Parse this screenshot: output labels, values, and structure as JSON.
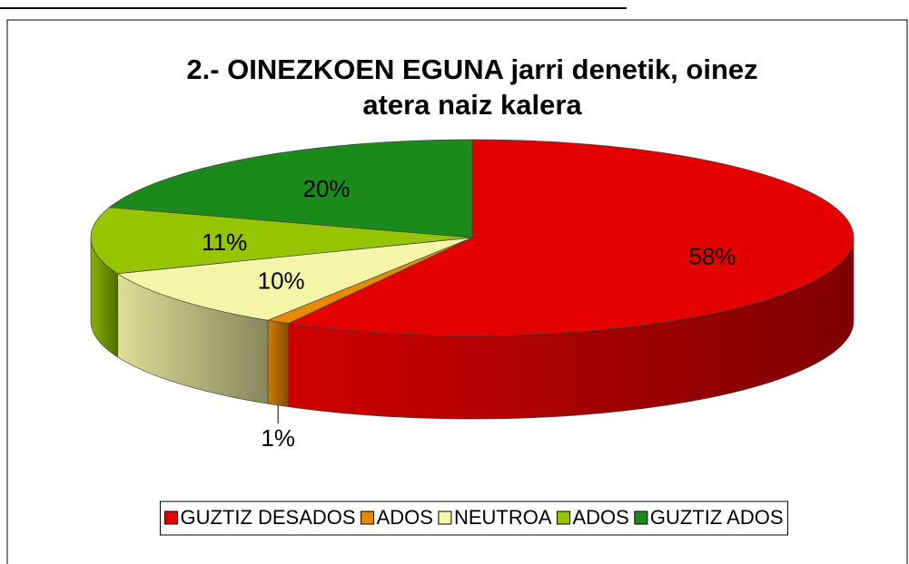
{
  "chart_data": {
    "type": "pie3d",
    "title": [
      "2.- OINEZKOEN EGUNA jarri denetik, oinez",
      "atera naiz kalera"
    ],
    "categories": [
      "GUZTIZ DESADOS",
      "ADOS",
      "NEUTROA",
      "ADOS",
      "GUZTIZ ADOS"
    ],
    "values": [
      58,
      1,
      10,
      11,
      20
    ],
    "value_labels": [
      "58%",
      "1%",
      "10%",
      "11%",
      "20%"
    ],
    "colors": [
      "#e50000",
      "#e88a00",
      "#f5f5a8",
      "#96c400",
      "#1a8a1a"
    ],
    "legend": "bottom"
  }
}
